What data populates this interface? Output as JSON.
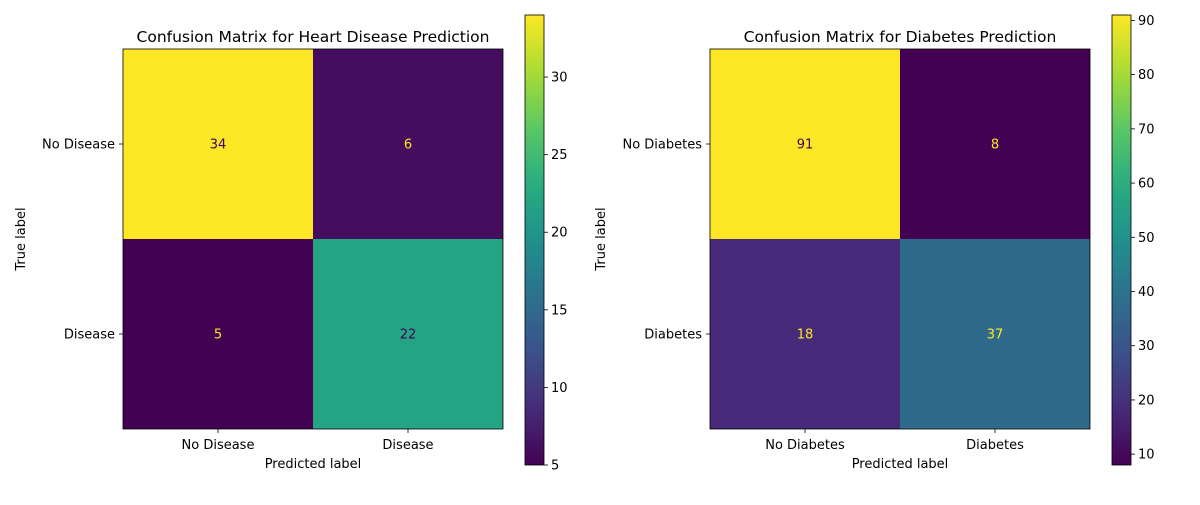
{
  "chart_data": [
    {
      "type": "heatmap",
      "title": "Confusion Matrix for Heart Disease Prediction",
      "xlabel": "Predicted label",
      "ylabel": "True label",
      "x_categories": [
        "No Disease",
        "Disease"
      ],
      "y_categories": [
        "No Disease",
        "Disease"
      ],
      "values": [
        [
          34,
          6
        ],
        [
          5,
          22
        ]
      ],
      "colormap": "viridis",
      "colorbar": {
        "min": 5,
        "max": 34,
        "ticks": [
          5,
          10,
          15,
          20,
          25,
          30
        ]
      }
    },
    {
      "type": "heatmap",
      "title": "Confusion Matrix for Diabetes Prediction",
      "xlabel": "Predicted label",
      "ylabel": "True label",
      "x_categories": [
        "No Diabetes",
        "Diabetes"
      ],
      "y_categories": [
        "No Diabetes",
        "Diabetes"
      ],
      "values": [
        [
          91,
          8
        ],
        [
          18,
          37
        ]
      ],
      "colormap": "viridis",
      "colorbar": {
        "min": 8,
        "max": 91,
        "ticks": [
          10,
          20,
          30,
          40,
          50,
          60,
          70,
          80,
          90
        ]
      }
    }
  ],
  "colors": {
    "low_text": "#fde725",
    "high_text": "#440154"
  }
}
